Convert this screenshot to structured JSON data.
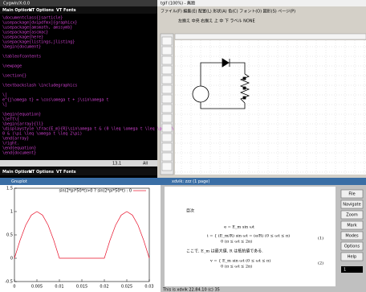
{
  "emacs": {
    "title": "Cygwin/X:0.0",
    "menu": [
      "Main Options",
      "VT Options",
      "VT Fonts"
    ],
    "lines": [
      "\\documentclass{jsarticle}",
      "\\usepackage[dvipdfmx]{graphicx}",
      "\\usepackage{amsmath, amssymb}",
      "\\usepackage{ascmac}",
      "\\usepackage{here}",
      "\\usepackage{listings,jlisting}",
      "\\begin{document}",
      "\\tableofcontents",
      "\\newpage",
      "\\section{}",
      "\\textbackslash \\includegraphics",
      "\\[",
      "e^{j\\omega t} = \\cos\\omega t + j\\sin\\omega t",
      "\\]",
      "\\begin{equation}",
      "\\left\\{",
      "\\begin{array}{ll}",
      "\\displaystyle \\frac{E_m}{R}\\sin\\omega t & (0 \\leq \\omega t \\leq \\pi) \\\\",
      "0 & (\\pi \\leq \\omega t \\leq 2\\pi)",
      "\\end{array}",
      "\\right.",
      "\\end{equation}",
      "\\end{document}"
    ],
    "status_position": "13,1",
    "status_scroll": "All",
    "bottom_menu": [
      "Main Options",
      "VT Options",
      "VT Fonts"
    ]
  },
  "tgif": {
    "title": "tgif (100%) - 無題",
    "menu": "ファイル(F)  編集(E)  配置(L)  形状(A)  色(C)  フォント(O)  図形(S)  ページ(P)",
    "toolbar": "左揃え  中央  右揃え  上  中  下  ラベル  NONE"
  },
  "gnuplot": {
    "title": "Gnuplot"
  },
  "chart_data": {
    "type": "line",
    "x": [
      0,
      0.00125,
      0.0025,
      0.00375,
      0.005,
      0.00625,
      0.0075,
      0.00875,
      0.01,
      0.01125,
      0.0125,
      0.01375,
      0.015,
      0.01625,
      0.0175,
      0.01875,
      0.02,
      0.02125,
      0.0225,
      0.02375,
      0.025,
      0.02625,
      0.0275,
      0.02875,
      0.03
    ],
    "series": [
      {
        "name": "sin(2*pi*50*t)>0 ? sin(2*pi*50*t) : 0",
        "color": "#e8102a",
        "values": [
          0,
          0.383,
          0.707,
          0.924,
          1,
          0.924,
          0.707,
          0.383,
          0,
          0,
          0,
          0,
          0,
          0,
          0,
          0,
          0,
          0.383,
          0.707,
          0.924,
          1,
          0.924,
          0.707,
          0.383,
          0
        ]
      }
    ],
    "xlim": [
      0,
      0.03
    ],
    "xticks": [
      0,
      0.005,
      0.01,
      0.015,
      0.02,
      0.025,
      0.03
    ],
    "ylim": [
      -0.5,
      1.5
    ],
    "yticks": [
      -0.5,
      0,
      0.5,
      1,
      1.5
    ],
    "grid": false
  },
  "xdvik": {
    "title": "xdvik: zzz (1 page)",
    "buttons": [
      "File",
      "Navigate",
      "Zoom",
      "Mark",
      "Modes",
      "Options",
      "Help"
    ],
    "page": "1",
    "status": "This is xdvik 22.84.10 (c) 35",
    "doc": {
      "heading": "目次",
      "eq0": "e = E_m sin ωt",
      "eq1_top": "i = { (E_m/R) sin ωt = (e/R)    (0 ≤ ωt ≤ π)",
      "eq1_bottom": "0    (π ≤ ωt ≤ 2π)",
      "eq1_number": "(1)",
      "text": "ここで, E_m は最大値, R は抵抗値である.",
      "eq2_top": "v = { E_m sin ωt    (0 ≤ ωt ≤ π)",
      "eq2_bottom": "0    (π ≤ ωt ≤ 2π)",
      "eq2_number": "(2)"
    }
  }
}
